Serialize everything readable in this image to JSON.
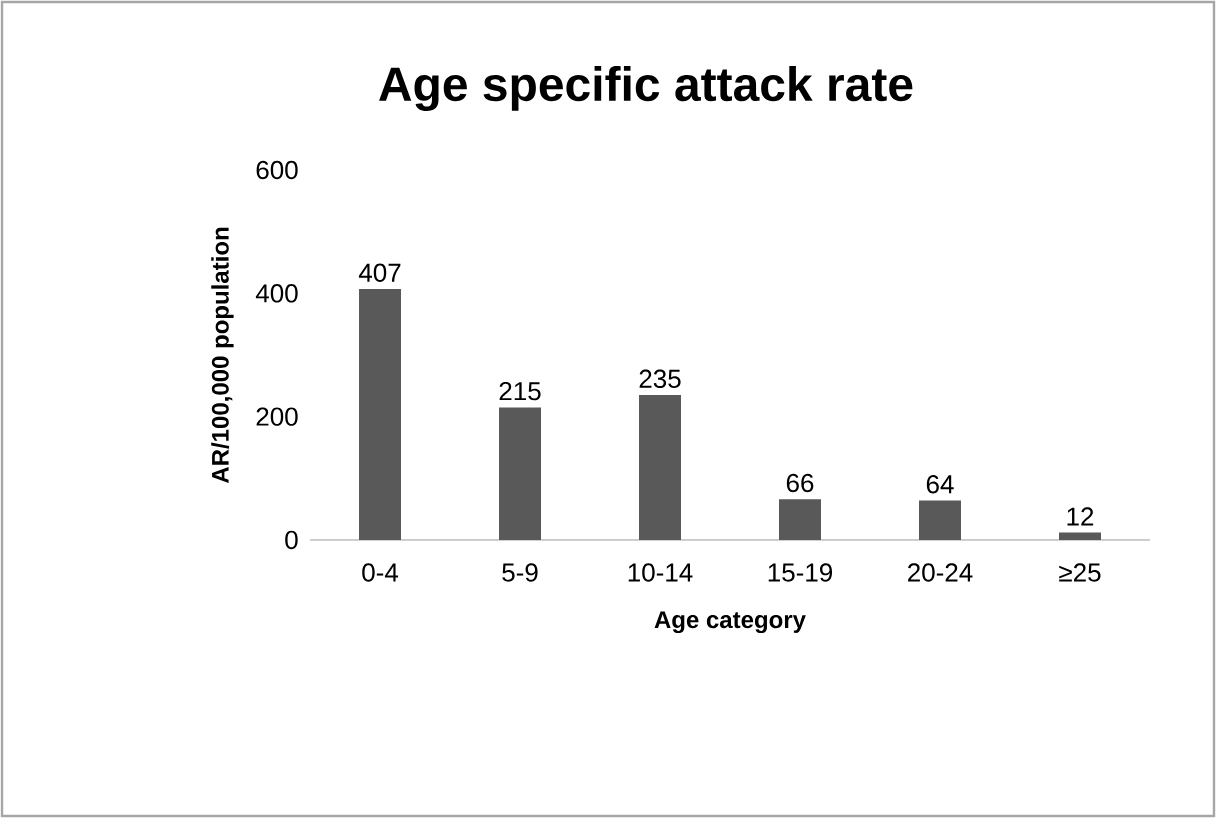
{
  "chart_data": {
    "type": "bar",
    "title": "Age specific attack rate",
    "xlabel": "Age category",
    "ylabel": "AR/100,000 population",
    "categories": [
      "0-4",
      "5-9",
      "10-14",
      "15-19",
      "20-24",
      "≥25"
    ],
    "values": [
      407,
      215,
      235,
      66,
      64,
      12
    ],
    "color": "#595959",
    "ylim": [
      0,
      600
    ],
    "yticks": [
      0,
      200,
      400,
      600
    ],
    "data_labels": true
  }
}
